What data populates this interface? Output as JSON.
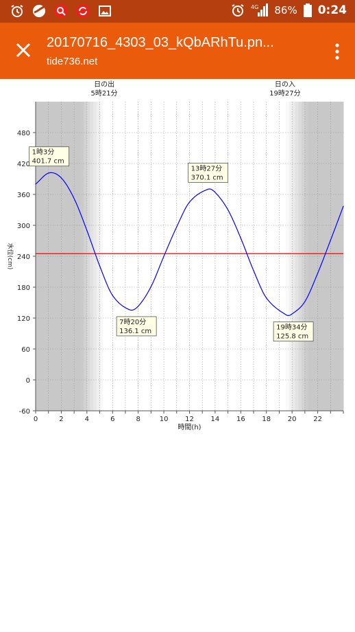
{
  "status_bar": {
    "icons": [
      "alarm-icon",
      "browser-icon",
      "search-app-icon",
      "sync-app-icon",
      "image-icon"
    ],
    "right_icons": [
      "alarm-icon",
      "signal-4g-icon"
    ],
    "network": "4G",
    "battery": "86%",
    "time": "0:24"
  },
  "app_bar": {
    "title": "20170716_4303_03_kQbARhTu.pn...",
    "subtitle": "tide736.net"
  },
  "chart_data": {
    "type": "line",
    "xlabel": "時間(h)",
    "ylabel": "水位(cm)",
    "xlim": [
      0,
      24
    ],
    "ylim": [
      -60,
      540
    ],
    "x_ticks": [
      0,
      2,
      4,
      6,
      8,
      10,
      12,
      14,
      16,
      18,
      20,
      22
    ],
    "y_ticks": [
      -60,
      0,
      60,
      120,
      180,
      240,
      300,
      360,
      420,
      480
    ],
    "grid": true,
    "reference_line": {
      "value": 245,
      "color": "#ff0000"
    },
    "sunrise": {
      "line1": "日の出",
      "line2": "5時21分",
      "hour": 5.35
    },
    "sunset": {
      "line1": "日の入",
      "line2": "19時27分",
      "hour": 19.45
    },
    "series": [
      {
        "color": "#0000ff",
        "x": [
          0,
          1.05,
          2,
          3,
          4,
          5,
          6,
          7.33,
          8,
          9,
          10,
          11,
          12,
          13.45,
          14,
          15,
          16,
          17,
          18,
          19.57,
          20,
          21,
          22,
          23,
          24
        ],
        "y": [
          380,
          401.7,
          392,
          352,
          290,
          221,
          164,
          136.1,
          143,
          181,
          240,
          297,
          345,
          370.1,
          364,
          330,
          275,
          212,
          159,
          125.8,
          128,
          152,
          207,
          271,
          337
        ]
      }
    ],
    "annotations": [
      {
        "hour": 1.05,
        "value": 401.7,
        "line1": "1時3分",
        "line2": "401.7 cm",
        "pos": "above"
      },
      {
        "hour": 7.33,
        "value": 136.1,
        "line1": "7時20分",
        "line2": "136.1 cm",
        "pos": "below"
      },
      {
        "hour": 13.45,
        "value": 370.1,
        "line1": "13時27分",
        "line2": "370.1 cm",
        "pos": "above"
      },
      {
        "hour": 19.57,
        "value": 125.8,
        "line1": "19時34分",
        "line2": "125.8 cm",
        "pos": "below"
      }
    ],
    "colors": {
      "night": "#c8c8c8",
      "day": "#ffffff",
      "curve": "#0000ff",
      "reference": "#ff0000",
      "annotation_bg": "#ffffe6"
    }
  }
}
